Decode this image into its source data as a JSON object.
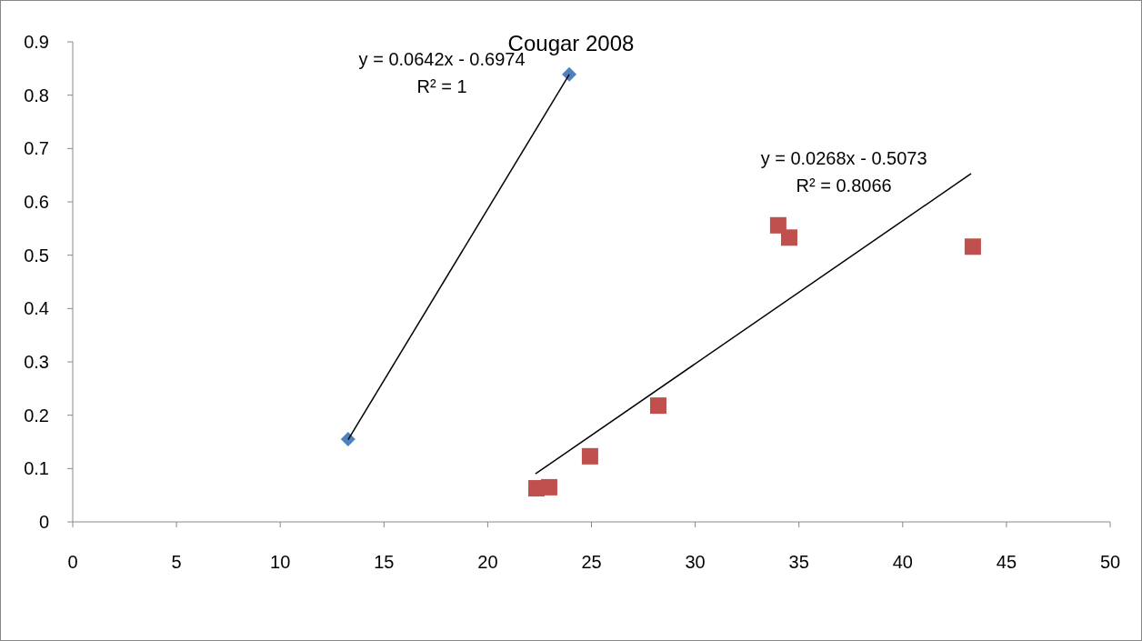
{
  "chart_data": {
    "type": "scatter",
    "title": "Cougar 2008",
    "xlim": [
      0,
      50
    ],
    "xticks": [
      0,
      5,
      10,
      15,
      20,
      25,
      30,
      35,
      40,
      45,
      50
    ],
    "ylim": [
      0,
      0.9
    ],
    "yticks": [
      0,
      0.1,
      0.2,
      0.3,
      0.4,
      0.5,
      0.6,
      0.7,
      0.8,
      0.9
    ],
    "grid": false,
    "series": [
      {
        "color": "#4f81bd",
        "marker": "diamond",
        "x": [
          13.27,
          23.93
        ],
        "values": [
          0.155,
          0.839
        ]
      },
      {
        "color": "#c0504d",
        "marker": "square",
        "x": [
          22.35,
          22.96,
          24.93,
          28.22,
          34.0,
          34.53,
          43.38
        ],
        "values": [
          0.063,
          0.065,
          0.123,
          0.218,
          0.556,
          0.533,
          0.516
        ]
      },
      {
        "type": "line",
        "color": "#000000",
        "marker": "none",
        "x": [
          13.27,
          23.93
        ],
        "values": [
          0.154,
          0.839
        ]
      },
      {
        "type": "line",
        "color": "#000000",
        "marker": "none",
        "x": [
          22.3,
          43.3
        ],
        "values": [
          0.09,
          0.653
        ]
      }
    ],
    "annotations": [
      "y = 0.0642x - 0.6974",
      "R² = 1",
      "y = 0.0268x - 0.5073",
      "R² = 0.8066"
    ]
  }
}
